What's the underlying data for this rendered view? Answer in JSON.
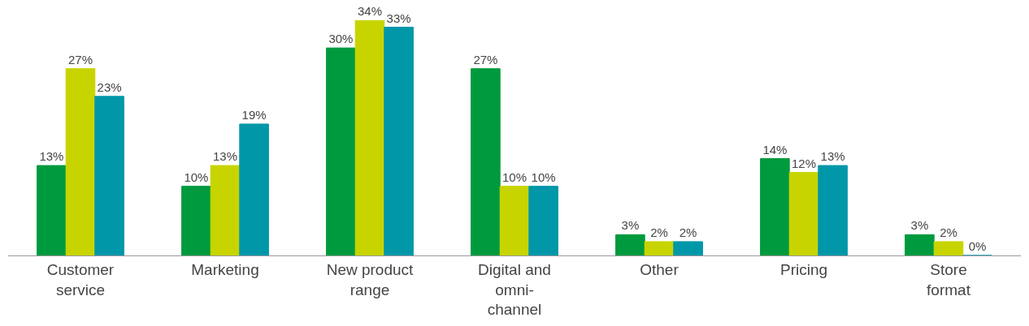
{
  "chart_data": {
    "type": "bar",
    "categories": [
      "Customer service",
      "Marketing",
      "New product range",
      "Digital and omni-channel",
      "Other",
      "Pricing",
      "Store format"
    ],
    "series": [
      {
        "color": "#009a3e",
        "values": [
          13,
          10,
          30,
          27,
          3,
          14,
          3
        ],
        "value_labels": [
          "13%",
          "10%",
          "30%",
          "27%",
          "3%",
          "14%",
          "3%"
        ]
      },
      {
        "color": "#c8d400",
        "values": [
          27,
          13,
          34,
          10,
          2,
          12,
          2
        ],
        "value_labels": [
          "27%",
          "13%",
          "34%",
          "10%",
          "2%",
          "12%",
          "2%"
        ]
      },
      {
        "color": "#0097a9",
        "values": [
          23,
          19,
          33,
          10,
          2,
          13,
          0
        ],
        "value_labels": [
          "23%",
          "19%",
          "33%",
          "10%",
          "2%",
          "13%",
          "0%"
        ]
      }
    ],
    "legend": false
  }
}
